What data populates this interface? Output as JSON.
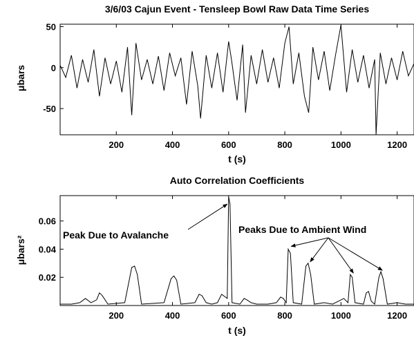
{
  "chart_data": [
    {
      "type": "line",
      "title": "3/6/03 Cajun Event - Tensleep Bowl Raw Data Time Series",
      "xlabel": "t (s)",
      "ylabel": "μbars",
      "xlim": [
        0,
        1260
      ],
      "ylim": [
        -82,
        53
      ],
      "xticks": [
        200,
        400,
        600,
        800,
        1000,
        1200
      ],
      "xtick_labels": [
        "200",
        "400",
        "600",
        "800",
        "1000",
        "1200"
      ],
      "yticks": [
        50,
        0,
        -50
      ],
      "ytick_labels": [
        "50",
        "0",
        "-50"
      ],
      "grid": false,
      "series": [
        {
          "color": "#000000",
          "x": [
            0,
            20,
            40,
            60,
            80,
            100,
            120,
            140,
            160,
            180,
            200,
            220,
            240,
            255,
            270,
            290,
            310,
            330,
            350,
            370,
            390,
            410,
            430,
            450,
            470,
            490,
            500,
            520,
            540,
            560,
            580,
            600,
            610,
            630,
            650,
            660,
            680,
            700,
            720,
            740,
            760,
            780,
            800,
            815,
            830,
            850,
            870,
            885,
            900,
            920,
            940,
            960,
            980,
            1000,
            1020,
            1040,
            1060,
            1080,
            1100,
            1120,
            1125,
            1140,
            1160,
            1180,
            1200,
            1220,
            1240,
            1260
          ],
          "y": [
            3,
            -12,
            15,
            -25,
            10,
            -18,
            22,
            -35,
            12,
            -20,
            8,
            -30,
            25,
            -58,
            30,
            -15,
            10,
            -20,
            14,
            -28,
            18,
            -10,
            12,
            -45,
            20,
            -22,
            -62,
            15,
            -25,
            18,
            -30,
            32,
            10,
            -40,
            28,
            -55,
            15,
            -20,
            22,
            -18,
            12,
            -25,
            30,
            50,
            -20,
            18,
            -35,
            -55,
            25,
            -15,
            20,
            -28,
            14,
            52,
            -30,
            22,
            -18,
            15,
            -25,
            10,
            -82,
            18,
            -20,
            12,
            -15,
            20,
            -10,
            5
          ]
        }
      ]
    },
    {
      "type": "line",
      "title": "Auto Correlation Coefficients",
      "xlabel": "t (s)",
      "ylabel": "μbars²",
      "xlim": [
        0,
        1260
      ],
      "ylim": [
        0,
        0.078
      ],
      "xticks": [
        200,
        400,
        600,
        800,
        1000,
        1200
      ],
      "xtick_labels": [
        "200",
        "400",
        "600",
        "800",
        "1000",
        "1200"
      ],
      "yticks": [
        0.06,
        0.04,
        0.02
      ],
      "ytick_labels": [
        "0.06",
        "0.04",
        "0.02"
      ],
      "grid": false,
      "annotations": [
        {
          "text": "Peak Due to Avalanche",
          "target_x": [
            600
          ],
          "target_y": [
            0.071
          ]
        },
        {
          "text": "Peaks Due to Ambient Wind",
          "target_x": [
            815,
            883,
            1037,
            1140
          ],
          "target_y": [
            0.041,
            0.03,
            0.022,
            0.024
          ]
        }
      ],
      "series": [
        {
          "color": "#000000",
          "x": [
            0,
            40,
            70,
            90,
            110,
            130,
            140,
            150,
            170,
            230,
            255,
            265,
            275,
            290,
            370,
            395,
            405,
            415,
            430,
            480,
            495,
            505,
            520,
            540,
            560,
            575,
            595,
            600,
            605,
            612,
            640,
            655,
            665,
            680,
            700,
            740,
            770,
            785,
            795,
            805,
            812,
            820,
            830,
            860,
            875,
            883,
            892,
            905,
            940,
            970,
            990,
            1010,
            1025,
            1033,
            1040,
            1050,
            1080,
            1090,
            1098,
            1108,
            1120,
            1135,
            1142,
            1150,
            1165,
            1200,
            1230,
            1260
          ],
          "y": [
            0.001,
            0.001,
            0.002,
            0.005,
            0.002,
            0.004,
            0.009,
            0.007,
            0.001,
            0.002,
            0.027,
            0.028,
            0.022,
            0.001,
            0.002,
            0.019,
            0.021,
            0.018,
            0.001,
            0.002,
            0.008,
            0.007,
            0.002,
            0.001,
            0.002,
            0.008,
            0.005,
            0.077,
            0.072,
            0.002,
            0.001,
            0.005,
            0.004,
            0.002,
            0.001,
            0.001,
            0.002,
            0.006,
            0.005,
            0.002,
            0.04,
            0.037,
            0.002,
            0.001,
            0.028,
            0.03,
            0.022,
            0.001,
            0.002,
            0.001,
            0.003,
            0.005,
            0.002,
            0.022,
            0.02,
            0.002,
            0.001,
            0.009,
            0.01,
            0.003,
            0.001,
            0.02,
            0.024,
            0.019,
            0.001,
            0.002,
            0.001,
            0.001
          ]
        }
      ]
    }
  ]
}
